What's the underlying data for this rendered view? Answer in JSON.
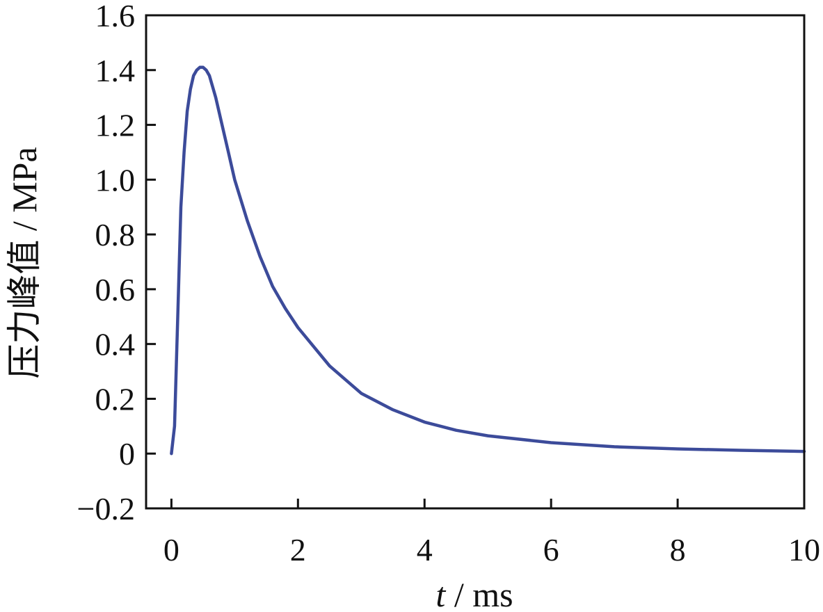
{
  "chart_data": {
    "type": "line",
    "xlabel_var": "t",
    "xlabel_unit": " / ms",
    "ylabel": "压力峰值 / MPa",
    "xlim": [
      -0.4,
      10
    ],
    "ylim": [
      -0.2,
      1.6
    ],
    "x_ticks": [
      "0",
      "2",
      "4",
      "6",
      "8",
      "10"
    ],
    "x_tick_values": [
      0,
      2,
      4,
      6,
      8,
      10
    ],
    "y_ticks": [
      "−0.2",
      "0",
      "0.2",
      "0.4",
      "0.6",
      "0.8",
      "1.0",
      "1.2",
      "1.4",
      "1.6"
    ],
    "y_tick_values": [
      -0.2,
      0,
      0.2,
      0.4,
      0.6,
      0.8,
      1.0,
      1.2,
      1.4,
      1.6
    ],
    "grid": false,
    "line_color": "#3c4b9a",
    "series": [
      {
        "x": [
          0,
          0.05,
          0.1,
          0.15,
          0.2,
          0.25,
          0.3,
          0.35,
          0.4,
          0.45,
          0.5,
          0.55,
          0.6,
          0.7,
          0.8,
          0.9,
          1.0,
          1.2,
          1.4,
          1.6,
          1.8,
          2.0,
          2.5,
          3.0,
          3.5,
          4.0,
          4.5,
          5.0,
          6.0,
          7.0,
          8.0,
          9.0,
          10.0
        ],
        "y": [
          0.0,
          0.1,
          0.5,
          0.9,
          1.1,
          1.25,
          1.33,
          1.38,
          1.4,
          1.41,
          1.41,
          1.4,
          1.38,
          1.3,
          1.2,
          1.1,
          1.0,
          0.85,
          0.72,
          0.61,
          0.53,
          0.46,
          0.32,
          0.22,
          0.16,
          0.115,
          0.085,
          0.065,
          0.04,
          0.025,
          0.017,
          0.012,
          0.008
        ]
      }
    ]
  }
}
